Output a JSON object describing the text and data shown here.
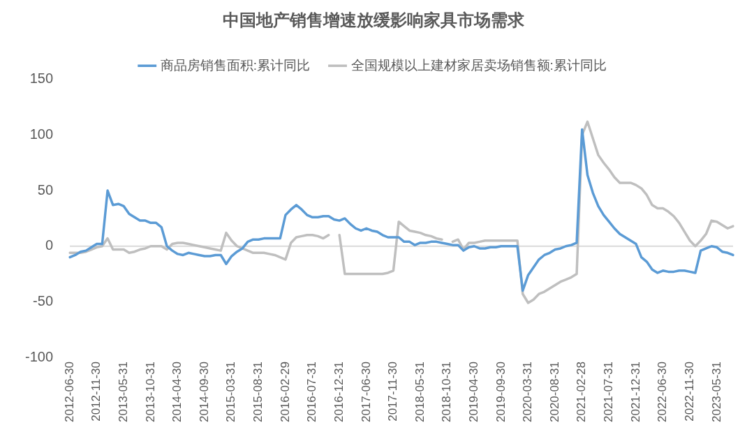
{
  "chart_data": {
    "type": "line",
    "title": "中国地产销售增速放缓影响家具市场需求",
    "categories": [
      "2012-06-30",
      null,
      null,
      null,
      null,
      "2012-11-30",
      null,
      null,
      null,
      null,
      "2013-05-31",
      null,
      null,
      null,
      null,
      "2013-10-31",
      null,
      null,
      null,
      null,
      "2014-04-30",
      null,
      null,
      null,
      null,
      "2014-09-30",
      null,
      null,
      null,
      null,
      "2015-03-31",
      null,
      null,
      null,
      null,
      "2015-08-31",
      null,
      null,
      null,
      null,
      "2016-02-29",
      null,
      null,
      null,
      null,
      "2016-07-31",
      null,
      null,
      null,
      null,
      "2016-12-31",
      null,
      null,
      null,
      null,
      "2017-06-30",
      null,
      null,
      null,
      null,
      "2017-11-30",
      null,
      null,
      null,
      null,
      "2018-05-31",
      null,
      null,
      null,
      null,
      "2018-10-31",
      null,
      null,
      null,
      null,
      "2019-04-30",
      null,
      null,
      null,
      null,
      "2019-09-30",
      null,
      null,
      null,
      null,
      "2020-03-31",
      null,
      null,
      null,
      null,
      "2020-08-31",
      null,
      null,
      null,
      null,
      "2021-02-28",
      null,
      null,
      null,
      null,
      "2021-07-31",
      null,
      null,
      null,
      null,
      "2021-12-31",
      null,
      null,
      null,
      null,
      "2022-06-30",
      null,
      null,
      null,
      null,
      "2022-11-30",
      null,
      null,
      null,
      null,
      "2023-05-31",
      null,
      null,
      null
    ],
    "series": [
      {
        "name": "商品房销售面积:累计同比",
        "color": "#5b9bd5",
        "values": [
          -10,
          -8,
          -5,
          -4,
          -1,
          2,
          2,
          50,
          37,
          38,
          36,
          29,
          26,
          23,
          23,
          21,
          21,
          17,
          0,
          -4,
          -7,
          -8,
          -6,
          -7,
          -8,
          -9,
          -9,
          -8,
          -8,
          -16,
          -9,
          -5,
          -2,
          4,
          6,
          6,
          7,
          7,
          7,
          7,
          28,
          33,
          37,
          33,
          28,
          26,
          26,
          27,
          27,
          24,
          23,
          25,
          20,
          16,
          14,
          16,
          14,
          13,
          10,
          8,
          8,
          8,
          4,
          4,
          1,
          3,
          3,
          4,
          4,
          3,
          2,
          1,
          1,
          -4,
          -1,
          0,
          -2,
          -2,
          -1,
          -1,
          0,
          0,
          0,
          0,
          -40,
          -26,
          -19,
          -12,
          -8,
          -6,
          -3,
          -2,
          0,
          1,
          3,
          105,
          64,
          48,
          36,
          28,
          22,
          16,
          11,
          8,
          5,
          2,
          -10,
          -14,
          -21,
          -24,
          -22,
          -23,
          -23,
          -22,
          -22,
          -23,
          -24,
          -4,
          -2,
          0,
          -1,
          -5,
          -6,
          -8
        ]
      },
      {
        "name": "全国规模以上建材家居卖场销售额:累计同比",
        "color": "#bfbfbf",
        "values": [
          -6,
          -6,
          -6,
          -5,
          -3,
          -1,
          0,
          7,
          -3,
          -3,
          -3,
          -6,
          -5,
          -3,
          -2,
          0,
          0,
          0,
          -3,
          2,
          3,
          3,
          2,
          1,
          0,
          -1,
          -2,
          -3,
          -4,
          12,
          5,
          0,
          -2,
          -4,
          -6,
          -6,
          -6,
          -7,
          -8,
          -10,
          -12,
          3,
          8,
          9,
          10,
          10,
          9,
          7,
          10,
          null,
          10,
          -25,
          -25,
          -25,
          -25,
          -25,
          -25,
          -25,
          -25,
          -24,
          -22,
          22,
          18,
          14,
          13,
          12,
          10,
          9,
          7,
          6,
          null,
          4,
          6,
          -3,
          3,
          3,
          4,
          5,
          5,
          5,
          5,
          5,
          5,
          5,
          -43,
          -51,
          -48,
          -43,
          -41,
          -38,
          -35,
          -32,
          -30,
          -28,
          -25,
          100,
          112,
          97,
          82,
          75,
          69,
          62,
          57,
          57,
          57,
          55,
          52,
          46,
          37,
          34,
          34,
          31,
          27,
          21,
          13,
          5,
          0,
          5,
          11,
          23,
          22,
          19,
          16,
          18
        ]
      }
    ],
    "ylim": [
      -100,
      150
    ],
    "yticks": [
      150,
      100,
      50,
      0,
      -50,
      -100
    ],
    "ref_lines": [
      {
        "axis": "y",
        "value": 0,
        "color": "#d9d9d9"
      }
    ],
    "legend": "top",
    "marker": "none",
    "line_style": "solid"
  }
}
